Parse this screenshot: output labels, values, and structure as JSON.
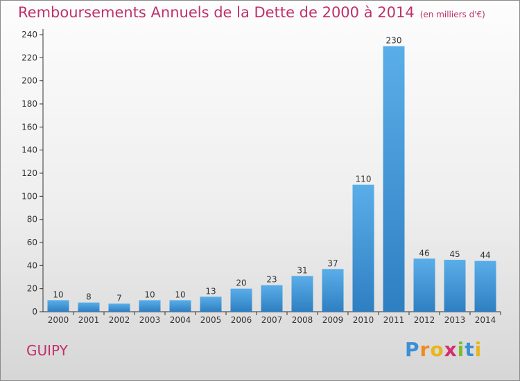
{
  "title": "Remboursements Annuels de la Dette de 2000 à 2014",
  "unit_note": "(en milliers d'€)",
  "commune": "GUIPY",
  "logo": {
    "letters": [
      "P",
      "r",
      "o",
      "x",
      "i",
      "t",
      "i"
    ],
    "colors": [
      "#3b8fd6",
      "#f08a1c",
      "#e8b51c",
      "#d62d6e",
      "#7cbd2b",
      "#3b8fd6",
      "#e8b51c"
    ]
  },
  "colors": {
    "bar_top": "#5aaee8",
    "bar_bottom": "#2e7fc2",
    "axis": "#333333",
    "title": "#c0306a"
  },
  "chart_data": {
    "type": "bar",
    "title": "Remboursements Annuels de la Dette de 2000 à 2014",
    "categories": [
      "2000",
      "2001",
      "2002",
      "2003",
      "2004",
      "2005",
      "2006",
      "2007",
      "2008",
      "2009",
      "2010",
      "2011",
      "2012",
      "2013",
      "2014"
    ],
    "values": [
      10,
      8,
      7,
      10,
      10,
      13,
      20,
      23,
      31,
      37,
      110,
      230,
      46,
      45,
      44
    ],
    "ylim": [
      0,
      240
    ],
    "yticks": [
      0,
      20,
      40,
      60,
      80,
      100,
      120,
      140,
      160,
      180,
      200,
      220,
      240
    ],
    "grid": false,
    "data_labels": true
  }
}
